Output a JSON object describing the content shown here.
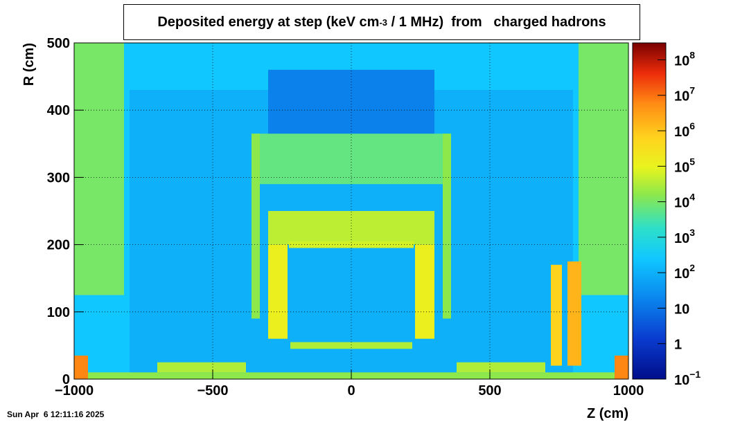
{
  "chart_data": {
    "type": "heatmap",
    "title": "Deposited energy at step (keV cm-3 / 1 MHz) from charged hadrons",
    "title_parts": {
      "pre": "Deposited energy at step (keV cm",
      "sup": "-3",
      "post": " / 1 MHz)  from   charged hadrons"
    },
    "xlabel": "Z (cm)",
    "ylabel": "R (cm)",
    "xlim": [
      -1000,
      1000
    ],
    "ylim": [
      0,
      500
    ],
    "x_ticks": [
      {
        "v": -1000,
        "label": "−1000"
      },
      {
        "v": -500,
        "label": "−500"
      },
      {
        "v": 0,
        "label": "0"
      },
      {
        "v": 500,
        "label": "500"
      },
      {
        "v": 1000,
        "label": "1000"
      }
    ],
    "y_ticks": [
      {
        "v": 0,
        "label": "0"
      },
      {
        "v": 100,
        "label": "100"
      },
      {
        "v": 200,
        "label": "200"
      },
      {
        "v": 300,
        "label": "300"
      },
      {
        "v": 400,
        "label": "400"
      },
      {
        "v": 500,
        "label": "500"
      }
    ],
    "grid": true,
    "colorbar": {
      "scale": "log",
      "range": [
        0.1,
        300000000
      ],
      "labels": [
        {
          "exp": -1,
          "base": "10",
          "sup": "−1"
        },
        {
          "exp": 0,
          "base": "1",
          "sup": ""
        },
        {
          "exp": 1,
          "base": "10",
          "sup": ""
        },
        {
          "exp": 2,
          "base": "10",
          "sup": "2"
        },
        {
          "exp": 3,
          "base": "10",
          "sup": "3"
        },
        {
          "exp": 4,
          "base": "10",
          "sup": "4"
        },
        {
          "exp": 5,
          "base": "10",
          "sup": "5"
        },
        {
          "exp": 6,
          "base": "10",
          "sup": "6"
        },
        {
          "exp": 7,
          "base": "10",
          "sup": "7"
        },
        {
          "exp": 8,
          "base": "10",
          "sup": "8"
        }
      ]
    },
    "regions": [
      {
        "z": [
          -1000,
          1000
        ],
        "r": [
          0,
          500
        ],
        "log10": 2.4,
        "label": "background"
      },
      {
        "z": [
          -800,
          800
        ],
        "r": [
          0,
          430
        ],
        "log10": 2.0,
        "label": "cavern"
      },
      {
        "z": [
          -300,
          300
        ],
        "r": [
          360,
          460
        ],
        "log10": 1.2,
        "label": "shielding-dark"
      },
      {
        "z": [
          -1000,
          -820
        ],
        "r": [
          125,
          500
        ],
        "log10": 4.0,
        "label": "left-endcap"
      },
      {
        "z": [
          820,
          1000
        ],
        "r": [
          125,
          500
        ],
        "log10": 4.0,
        "label": "right-endcap"
      },
      {
        "z": [
          -360,
          360
        ],
        "r": [
          290,
          365
        ],
        "log10": 3.8,
        "label": "outer-shell"
      },
      {
        "z": [
          -360,
          -330
        ],
        "r": [
          90,
          365
        ],
        "log10": 4.2,
        "label": "left-wall"
      },
      {
        "z": [
          330,
          360
        ],
        "r": [
          90,
          365
        ],
        "log10": 4.2,
        "label": "right-wall"
      },
      {
        "z": [
          -300,
          300
        ],
        "r": [
          200,
          250
        ],
        "log10": 4.6,
        "label": "calorimeter"
      },
      {
        "z": [
          -225,
          225
        ],
        "r": [
          195,
          205
        ],
        "log10": 4.8,
        "label": "inner-ring"
      },
      {
        "z": [
          -300,
          -230
        ],
        "r": [
          60,
          200
        ],
        "log10": 5.1,
        "label": "left-inner-calo"
      },
      {
        "z": [
          230,
          300
        ],
        "r": [
          60,
          200
        ],
        "log10": 5.1,
        "label": "right-inner-calo"
      },
      {
        "z": [
          -220,
          220
        ],
        "r": [
          45,
          55
        ],
        "log10": 4.5,
        "label": "lower-ring"
      },
      {
        "z": [
          -1000,
          1000
        ],
        "r": [
          0,
          10
        ],
        "log10": 4.2,
        "label": "beamline"
      },
      {
        "z": [
          -700,
          -380
        ],
        "r": [
          10,
          25
        ],
        "log10": 4.5,
        "label": "left-forward"
      },
      {
        "z": [
          380,
          700
        ],
        "r": [
          10,
          25
        ],
        "log10": 4.5,
        "label": "right-forward"
      },
      {
        "z": [
          720,
          760
        ],
        "r": [
          20,
          170
        ],
        "log10": 5.8,
        "label": "right-absorber-1"
      },
      {
        "z": [
          780,
          830
        ],
        "r": [
          20,
          175
        ],
        "log10": 6.2,
        "label": "right-absorber-2"
      },
      {
        "z": [
          -1000,
          -950
        ],
        "r": [
          0,
          35
        ],
        "log10": 6.8,
        "label": "left-collimator"
      },
      {
        "z": [
          950,
          1000
        ],
        "r": [
          0,
          35
        ],
        "log10": 6.8,
        "label": "right-collimator"
      }
    ]
  },
  "timestamp": "Sun Apr  6 12:11:16 2025"
}
